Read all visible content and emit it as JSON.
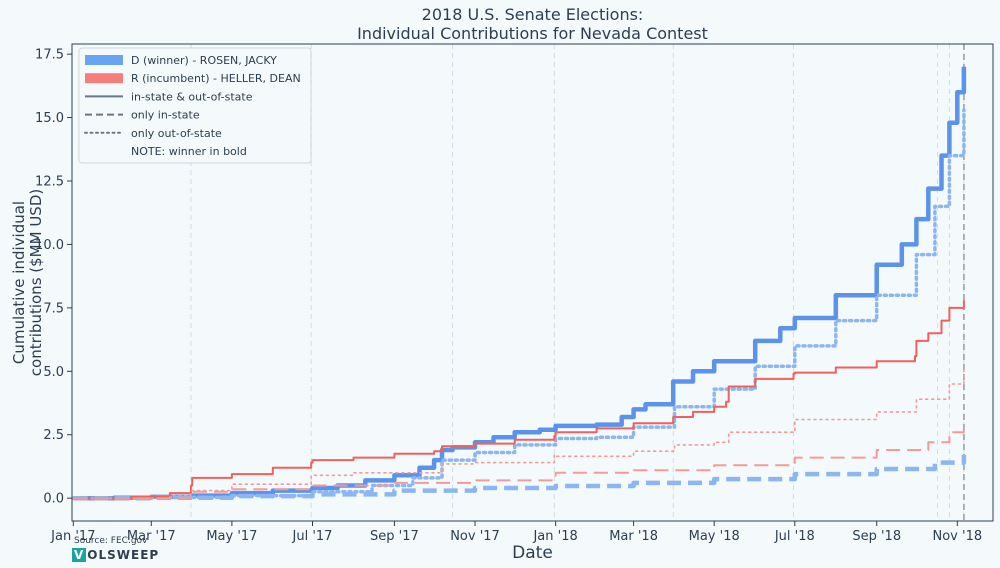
{
  "chart_data": {
    "type": "line",
    "title_lines": [
      "2018 U.S. Senate Elections:",
      "Individual Contributions for Nevada Contest"
    ],
    "xlabel": "Date",
    "ylabel_lines": [
      "Cumulative individual",
      "contributions ($MM USD)"
    ],
    "ylim": [
      -0.9,
      17.9
    ],
    "xlim": [
      "2016-12-31",
      "2018-11-28"
    ],
    "xticks": [
      {
        "date": "2017-01-01",
        "label": "Jan '17"
      },
      {
        "date": "2017-03-01",
        "label": "Mar '17"
      },
      {
        "date": "2017-05-01",
        "label": "May '17"
      },
      {
        "date": "2017-07-01",
        "label": "Jul '17"
      },
      {
        "date": "2017-09-01",
        "label": "Sep '17"
      },
      {
        "date": "2017-11-01",
        "label": "Nov '17"
      },
      {
        "date": "2018-01-01",
        "label": "Jan '18"
      },
      {
        "date": "2018-03-01",
        "label": "Mar '18"
      },
      {
        "date": "2018-05-01",
        "label": "May '18"
      },
      {
        "date": "2018-07-01",
        "label": "Jul '18"
      },
      {
        "date": "2018-09-01",
        "label": "Sep '18"
      },
      {
        "date": "2018-11-01",
        "label": "Nov '18"
      }
    ],
    "yticks": [
      {
        "value": 0.0,
        "label": "0.0"
      },
      {
        "value": 2.5,
        "label": "2.5"
      },
      {
        "value": 5.0,
        "label": "5.0"
      },
      {
        "value": 7.5,
        "label": "7.5"
      },
      {
        "value": 10.0,
        "label": "10.0"
      },
      {
        "value": 12.5,
        "label": "12.5"
      },
      {
        "value": 15.0,
        "label": "15.0"
      },
      {
        "value": 17.5,
        "label": "17.5"
      }
    ],
    "grid": "vertical-dashed",
    "vertical_gridline_dates": [
      "2017-03-31",
      "2017-06-30",
      "2017-10-15",
      "2017-12-31",
      "2018-03-31",
      "2018-06-30",
      "2018-10-17",
      "2018-10-26",
      "2018-11-06"
    ],
    "election_line_date": "2018-11-06",
    "legend_position": "top-left",
    "legend": [
      {
        "label": "D (winner) - ROSEN, JACKY",
        "kind": "patch",
        "color": "#6aa3f0"
      },
      {
        "label": "R (incumbent) - HELLER, DEAN",
        "kind": "patch",
        "color": "#f47e7a"
      },
      {
        "label": "in-state & out-of-state",
        "kind": "solid"
      },
      {
        "label": "only in-state",
        "kind": "dashed"
      },
      {
        "label": "only out-of-state",
        "kind": "dotted"
      },
      {
        "label": "NOTE: winner in bold",
        "kind": "none"
      }
    ],
    "series": [
      {
        "candidate": "ROSEN, JACKY",
        "scope": "in-state & out-of-state",
        "color": "#5b93ea",
        "style": "solid",
        "bold": true,
        "x": [
          "2017-01-01",
          "2017-02-01",
          "2017-03-01",
          "2017-04-01",
          "2017-05-01",
          "2017-06-01",
          "2017-07-01",
          "2017-07-20",
          "2017-08-10",
          "2017-09-01",
          "2017-09-20",
          "2017-10-01",
          "2017-10-07",
          "2017-10-15",
          "2017-11-01",
          "2017-11-15",
          "2017-12-01",
          "2017-12-20",
          "2018-01-01",
          "2018-01-20",
          "2018-02-01",
          "2018-02-20",
          "2018-03-01",
          "2018-03-10",
          "2018-03-31",
          "2018-04-15",
          "2018-05-01",
          "2018-06-01",
          "2018-06-20",
          "2018-07-01",
          "2018-08-01",
          "2018-09-01",
          "2018-09-20",
          "2018-10-01",
          "2018-10-10",
          "2018-10-20",
          "2018-10-26",
          "2018-11-01",
          "2018-11-06"
        ],
        "y": [
          0.0,
          0.02,
          0.05,
          0.1,
          0.2,
          0.3,
          0.4,
          0.5,
          0.7,
          0.9,
          1.2,
          1.5,
          1.9,
          2.0,
          2.2,
          2.4,
          2.6,
          2.7,
          2.85,
          2.85,
          2.9,
          3.2,
          3.5,
          3.7,
          4.6,
          5.0,
          5.4,
          6.2,
          6.7,
          7.1,
          8.0,
          9.2,
          10.0,
          11.0,
          12.2,
          13.5,
          14.8,
          16.0,
          17.0
        ]
      },
      {
        "candidate": "ROSEN, JACKY",
        "scope": "only in-state",
        "color": "#8cb6f2",
        "style": "dashed",
        "bold": true,
        "x": [
          "2017-01-01",
          "2017-03-01",
          "2017-05-01",
          "2017-07-01",
          "2017-09-01",
          "2017-11-01",
          "2018-01-01",
          "2018-03-01",
          "2018-05-01",
          "2018-07-01",
          "2018-09-01",
          "2018-10-15",
          "2018-11-06"
        ],
        "y": [
          0.0,
          0.02,
          0.08,
          0.15,
          0.3,
          0.4,
          0.48,
          0.6,
          0.75,
          0.95,
          1.15,
          1.4,
          1.7
        ]
      },
      {
        "candidate": "ROSEN, JACKY",
        "scope": "only out-of-state",
        "color": "#8cb6f2",
        "style": "dotted",
        "bold": true,
        "x": [
          "2017-01-01",
          "2017-03-01",
          "2017-05-01",
          "2017-07-01",
          "2017-08-15",
          "2017-09-15",
          "2017-10-07",
          "2017-11-01",
          "2017-12-01",
          "2018-01-01",
          "2018-02-01",
          "2018-03-01",
          "2018-04-01",
          "2018-05-01",
          "2018-06-01",
          "2018-07-01",
          "2018-08-01",
          "2018-09-01",
          "2018-10-01",
          "2018-10-15",
          "2018-10-26",
          "2018-11-06"
        ],
        "y": [
          0.0,
          0.03,
          0.1,
          0.25,
          0.5,
          0.8,
          1.5,
          1.8,
          2.1,
          2.35,
          2.4,
          2.8,
          3.6,
          4.3,
          5.2,
          6.0,
          7.0,
          8.0,
          9.6,
          11.5,
          13.5,
          15.3
        ]
      },
      {
        "candidate": "HELLER, DEAN",
        "scope": "in-state & out-of-state",
        "color": "#f0605c",
        "style": "solid",
        "bold": false,
        "x": [
          "2017-01-01",
          "2017-02-15",
          "2017-03-15",
          "2017-03-31",
          "2017-04-01",
          "2017-05-01",
          "2017-06-01",
          "2017-06-30",
          "2017-07-01",
          "2017-08-01",
          "2017-09-01",
          "2017-10-01",
          "2017-10-07",
          "2017-11-01",
          "2017-12-01",
          "2017-12-31",
          "2018-01-01",
          "2018-02-01",
          "2018-03-01",
          "2018-03-31",
          "2018-04-15",
          "2018-05-01",
          "2018-05-10",
          "2018-05-12",
          "2018-06-01",
          "2018-06-30",
          "2018-07-01",
          "2018-08-01",
          "2018-09-01",
          "2018-09-30",
          "2018-10-01",
          "2018-10-10",
          "2018-10-20",
          "2018-10-26",
          "2018-11-06"
        ],
        "y": [
          0.0,
          0.05,
          0.2,
          0.5,
          0.8,
          0.95,
          1.2,
          1.4,
          1.5,
          1.6,
          1.75,
          1.85,
          2.05,
          2.15,
          2.3,
          2.45,
          2.6,
          2.75,
          2.95,
          3.2,
          3.4,
          3.6,
          3.8,
          4.4,
          4.7,
          4.9,
          4.95,
          5.15,
          5.4,
          5.6,
          6.2,
          6.5,
          7.0,
          7.5,
          7.8
        ]
      },
      {
        "candidate": "HELLER, DEAN",
        "scope": "only in-state",
        "color": "#f59a96",
        "style": "dashed",
        "bold": false,
        "x": [
          "2017-01-01",
          "2017-03-31",
          "2017-05-01",
          "2017-07-01",
          "2017-09-01",
          "2017-11-01",
          "2017-12-31",
          "2018-01-01",
          "2018-03-01",
          "2018-05-01",
          "2018-07-01",
          "2018-09-01",
          "2018-10-10",
          "2018-10-26",
          "2018-11-06"
        ],
        "y": [
          0.0,
          0.25,
          0.35,
          0.5,
          0.6,
          0.7,
          0.75,
          1.0,
          1.1,
          1.3,
          1.6,
          1.9,
          2.2,
          2.6,
          2.8
        ]
      },
      {
        "candidate": "HELLER, DEAN",
        "scope": "only out-of-state",
        "color": "#f59a96",
        "style": "dotted",
        "bold": false,
        "x": [
          "2017-01-01",
          "2017-03-15",
          "2017-03-31",
          "2017-05-01",
          "2017-06-30",
          "2017-08-01",
          "2017-10-07",
          "2017-11-01",
          "2017-12-31",
          "2018-01-01",
          "2018-03-01",
          "2018-04-01",
          "2018-05-01",
          "2018-05-12",
          "2018-07-01",
          "2018-09-01",
          "2018-10-01",
          "2018-10-26",
          "2018-11-06"
        ],
        "y": [
          0.0,
          0.1,
          0.3,
          0.55,
          0.9,
          1.0,
          1.35,
          1.4,
          1.7,
          1.65,
          1.85,
          2.1,
          2.2,
          2.6,
          3.1,
          3.4,
          3.9,
          4.5,
          5.1
        ]
      }
    ]
  },
  "footer": {
    "source": "Source: FEC.gov",
    "brand_initial": "V",
    "brand_rest": "OLSWEEP"
  }
}
